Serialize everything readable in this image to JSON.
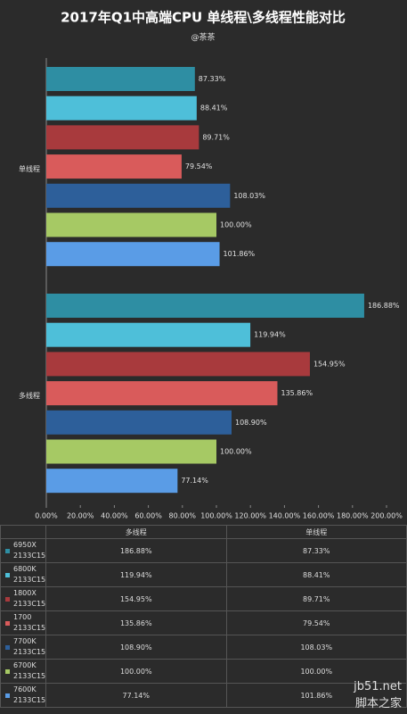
{
  "chart_data": {
    "type": "hbar",
    "title": "2017年Q1中高端CPU  单线程\\多线程性能对比",
    "subtitle": "@茶茶",
    "categories": [
      "单线程",
      "多线程"
    ],
    "series": [
      {
        "name": "6950X 2133C15",
        "color": "#2e8ea3",
        "values": [
          87.33,
          186.88
        ],
        "value_labels": [
          "87.33%",
          "186.88%"
        ]
      },
      {
        "name": "6800K 2133C15",
        "color": "#4ebfd9",
        "values": [
          88.41,
          119.94
        ],
        "value_labels": [
          "88.41%",
          "119.94%"
        ]
      },
      {
        "name": "1800X 2133C15",
        "color": "#a83a3d",
        "values": [
          89.71,
          154.95
        ],
        "value_labels": [
          "89.71%",
          "154.95%"
        ]
      },
      {
        "name": "1700 2133C15",
        "color": "#d95b5b",
        "values": [
          79.54,
          135.86
        ],
        "value_labels": [
          "79.54%",
          "135.86%"
        ]
      },
      {
        "name": "7700K 2133C15",
        "color": "#2d5f9a",
        "values": [
          108.03,
          108.9
        ],
        "value_labels": [
          "108.03%",
          "108.90%"
        ]
      },
      {
        "name": "6700K 2133C15",
        "color": "#a6c964",
        "values": [
          100.0,
          100.0
        ],
        "value_labels": [
          "100.00%",
          "100.00%"
        ]
      },
      {
        "name": "7600K 2133C15",
        "color": "#5a9ce6",
        "values": [
          101.86,
          77.14
        ],
        "value_labels": [
          "101.86%",
          "77.14%"
        ]
      }
    ],
    "xlim": [
      0,
      200
    ],
    "xticks": [
      {
        "value": 0,
        "label": "0.00%"
      },
      {
        "value": 20,
        "label": "20.00%"
      },
      {
        "value": 40,
        "label": "40.00%"
      },
      {
        "value": 60,
        "label": "60.00%"
      },
      {
        "value": 80,
        "label": "80.00%"
      },
      {
        "value": 100,
        "label": "100.00%"
      },
      {
        "value": 120,
        "label": "120.00%"
      },
      {
        "value": 140,
        "label": "140.00%"
      },
      {
        "value": 160,
        "label": "160.00%"
      },
      {
        "value": 180,
        "label": "180.00%"
      },
      {
        "value": 200,
        "label": "200.00%"
      }
    ],
    "watermark": [
      "jb51.net",
      "脚本之家"
    ]
  }
}
